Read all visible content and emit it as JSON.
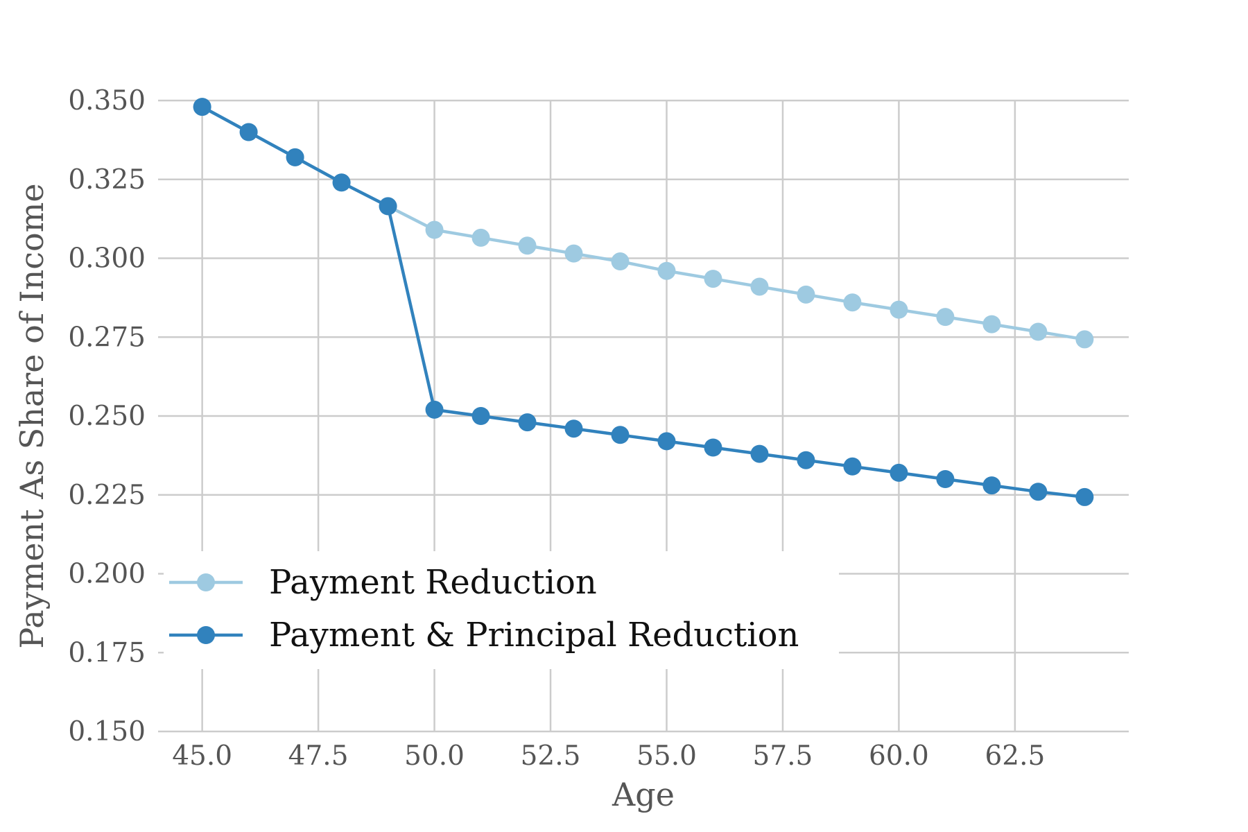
{
  "chart_data": {
    "type": "line",
    "title": "",
    "xlabel": "Age",
    "ylabel": "Payment As Share of Income",
    "xlim": [
      44.05,
      64.95
    ],
    "ylim": [
      0.15,
      0.35
    ],
    "xticks": [
      45.0,
      47.5,
      50.0,
      52.5,
      55.0,
      57.5,
      60.0,
      62.5
    ],
    "xtick_labels": [
      "45.0",
      "47.5",
      "50.0",
      "52.5",
      "55.0",
      "57.5",
      "60.0",
      "62.5"
    ],
    "yticks": [
      0.15,
      0.175,
      0.2,
      0.225,
      0.25,
      0.275,
      0.3,
      0.325,
      0.35
    ],
    "ytick_labels": [
      "0.150",
      "0.175",
      "0.200",
      "0.225",
      "0.250",
      "0.275",
      "0.300",
      "0.325",
      "0.350"
    ],
    "grid": true,
    "legend_position": "lower-left",
    "x": [
      45,
      46,
      47,
      48,
      49,
      50,
      51,
      52,
      53,
      54,
      55,
      56,
      57,
      58,
      59,
      60,
      61,
      62,
      63,
      64
    ],
    "series": [
      {
        "name": "Payment Reduction",
        "color": "#9ecae1",
        "values": [
          0.348,
          0.34,
          0.332,
          0.324,
          0.3165,
          0.309,
          0.3065,
          0.304,
          0.3015,
          0.299,
          0.296,
          0.2935,
          0.291,
          0.2885,
          0.286,
          0.2837,
          0.2814,
          0.2791,
          0.2767,
          0.2743
        ]
      },
      {
        "name": "Payment & Principal Reduction",
        "color": "#3182bd",
        "values": [
          0.348,
          0.34,
          0.332,
          0.324,
          0.3165,
          0.252,
          0.25,
          0.248,
          0.246,
          0.244,
          0.242,
          0.24,
          0.238,
          0.236,
          0.234,
          0.232,
          0.23,
          0.228,
          0.226,
          0.2243
        ]
      }
    ]
  }
}
